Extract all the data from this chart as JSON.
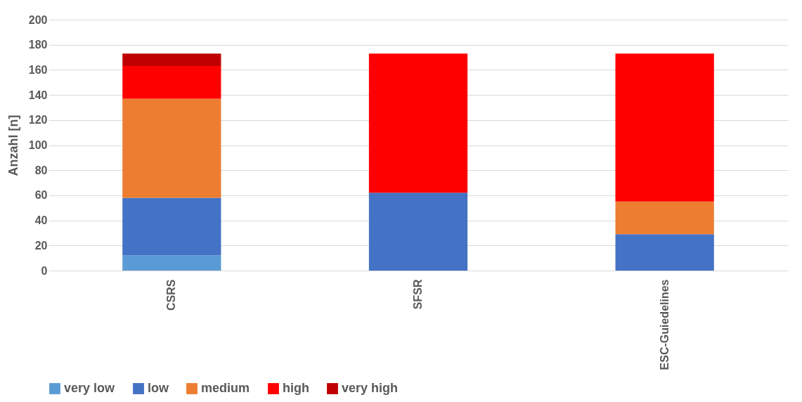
{
  "chart_data": {
    "type": "bar",
    "stacked": true,
    "ylabel": "Anzahl [n]",
    "categories": [
      "CSRS",
      "SFSR",
      "ESC-Guiedelines"
    ],
    "series": [
      {
        "name": "very low",
        "color": "#5b9bd5",
        "values": [
          12,
          0,
          0
        ]
      },
      {
        "name": "low",
        "color": "#4472c4",
        "values": [
          46,
          62,
          29
        ]
      },
      {
        "name": "medium",
        "color": "#ed7d31",
        "values": [
          79,
          0,
          26
        ]
      },
      {
        "name": "high",
        "color": "#ff0000",
        "values": [
          26,
          111,
          118
        ]
      },
      {
        "name": "very high",
        "color": "#c00000",
        "values": [
          10,
          0,
          0
        ]
      }
    ],
    "ylim": [
      0,
      200
    ],
    "yticks": [
      0,
      20,
      40,
      60,
      80,
      100,
      120,
      140,
      160,
      180,
      200
    ],
    "grid": "y",
    "legend": "bottom"
  }
}
